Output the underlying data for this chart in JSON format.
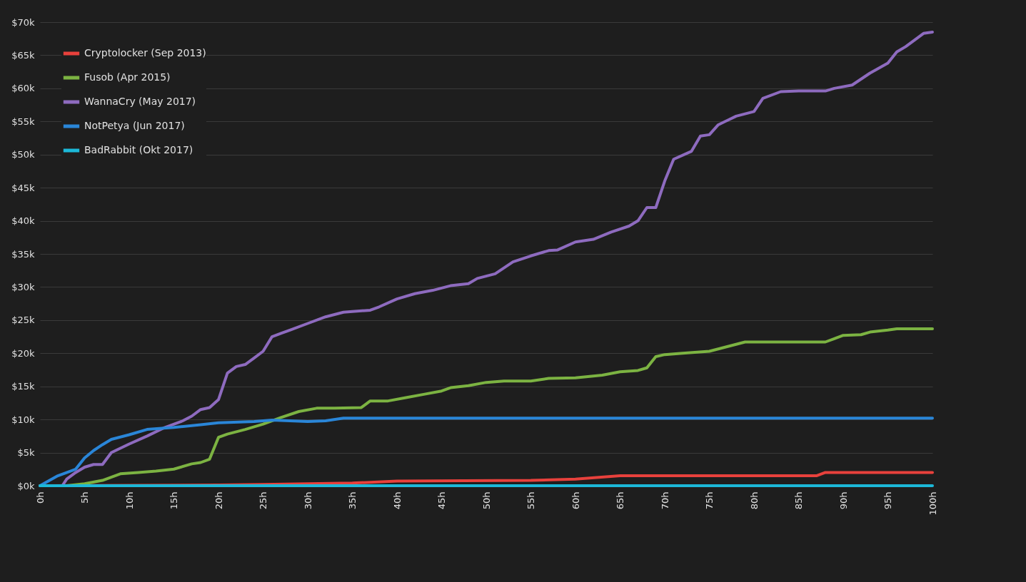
{
  "chart_data": {
    "type": "line",
    "legend": "top left",
    "grid": "y",
    "marker": "none",
    "line_style": "solid",
    "xlim": [
      0,
      100
    ],
    "ylim": [
      0,
      70
    ],
    "xticks": [
      {
        "value": 0,
        "label": "0h"
      },
      {
        "value": 5,
        "label": "5h"
      },
      {
        "value": 10,
        "label": "10h"
      },
      {
        "value": 15,
        "label": "15h"
      },
      {
        "value": 20,
        "label": "20h"
      },
      {
        "value": 25,
        "label": "25h"
      },
      {
        "value": 30,
        "label": "30h"
      },
      {
        "value": 35,
        "label": "35h"
      },
      {
        "value": 40,
        "label": "40h"
      },
      {
        "value": 45,
        "label": "45h"
      },
      {
        "value": 50,
        "label": "50h"
      },
      {
        "value": 55,
        "label": "55h"
      },
      {
        "value": 60,
        "label": "60h"
      },
      {
        "value": 65,
        "label": "65h"
      },
      {
        "value": 70,
        "label": "70h"
      },
      {
        "value": 75,
        "label": "75h"
      },
      {
        "value": 80,
        "label": "80h"
      },
      {
        "value": 85,
        "label": "85h"
      },
      {
        "value": 90,
        "label": "90h"
      },
      {
        "value": 95,
        "label": "95h"
      },
      {
        "value": 100,
        "label": "100h"
      }
    ],
    "yticks": [
      {
        "value": 0,
        "label": "$0k"
      },
      {
        "value": 5,
        "label": "$5k"
      },
      {
        "value": 10,
        "label": "$10k"
      },
      {
        "value": 15,
        "label": "$15k"
      },
      {
        "value": 20,
        "label": "$20k"
      },
      {
        "value": 25,
        "label": "$25k"
      },
      {
        "value": 30,
        "label": "$30k"
      },
      {
        "value": 35,
        "label": "$35k"
      },
      {
        "value": 40,
        "label": "$40k"
      },
      {
        "value": 45,
        "label": "$45k"
      },
      {
        "value": 50,
        "label": "$50k"
      },
      {
        "value": 55,
        "label": "$55k"
      },
      {
        "value": 60,
        "label": "$60k"
      },
      {
        "value": 65,
        "label": "$65k"
      },
      {
        "value": 70,
        "label": "$70k"
      }
    ],
    "series": [
      {
        "name": "Cryptolocker (Sep 2013)",
        "color": "#e8413c",
        "x": [
          0,
          20,
          25,
          35,
          40,
          55,
          60,
          65,
          87,
          88,
          100
        ],
        "values": [
          0,
          0.1,
          0.2,
          0.4,
          0.7,
          0.8,
          1,
          1.5,
          1.5,
          2,
          2
        ]
      },
      {
        "name": "Fusob (Apr 2015)",
        "color": "#7cb342",
        "x": [
          0,
          3,
          5,
          7,
          9,
          11,
          13,
          15,
          17,
          18,
          19,
          20,
          21,
          23,
          25,
          27,
          29,
          31,
          33,
          36,
          37,
          39,
          41,
          43,
          45,
          46,
          48,
          50,
          52,
          55,
          57,
          60,
          63,
          65,
          67,
          68,
          69,
          70,
          72,
          75,
          77,
          79,
          82,
          85,
          88,
          89,
          90,
          92,
          93,
          95,
          96,
          100
        ],
        "values": [
          0,
          0,
          0.3,
          0.8,
          1.8,
          2,
          2.2,
          2.5,
          3.3,
          3.5,
          4,
          7.3,
          7.8,
          8.5,
          9.3,
          10.3,
          11.2,
          11.7,
          11.7,
          11.8,
          12.8,
          12.8,
          13.3,
          13.8,
          14.3,
          14.8,
          15.1,
          15.6,
          15.8,
          15.8,
          16.2,
          16.3,
          16.7,
          17.2,
          17.4,
          17.8,
          19.5,
          19.8,
          20,
          20.3,
          21,
          21.7,
          21.7,
          21.7,
          21.7,
          22.2,
          22.7,
          22.8,
          23.2,
          23.5,
          23.7,
          23.7
        ]
      },
      {
        "name": "WannaCry (May 2017)",
        "color": "#8e6bbf",
        "x": [
          2.5,
          3,
          4,
          5,
          6,
          7,
          8,
          10,
          12,
          14,
          16,
          17,
          18,
          19,
          20,
          21,
          22,
          23,
          24,
          25,
          26,
          27,
          28,
          30,
          32,
          34,
          35,
          37,
          38,
          40,
          42,
          44,
          46,
          48,
          49,
          51,
          53,
          55,
          57,
          58,
          60,
          62,
          64,
          66,
          67,
          68,
          69,
          70,
          71,
          73,
          74,
          75,
          76,
          78,
          80,
          81,
          83,
          85,
          88,
          89,
          91,
          93,
          95,
          96,
          97,
          98,
          99,
          100
        ],
        "values": [
          0,
          1,
          2,
          2.8,
          3.2,
          3.2,
          5,
          6.3,
          7.5,
          8.8,
          9.8,
          10.5,
          11.5,
          11.8,
          13,
          17,
          18,
          18.3,
          19.3,
          20.3,
          22.5,
          23,
          23.5,
          24.5,
          25.5,
          26.2,
          26.3,
          26.5,
          27,
          28.2,
          29,
          29.5,
          30.2,
          30.5,
          31.3,
          32,
          33.8,
          34.7,
          35.5,
          35.6,
          36.8,
          37.2,
          38.3,
          39.2,
          40,
          42,
          42,
          46,
          49.3,
          50.5,
          52.8,
          53,
          54.5,
          55.8,
          56.5,
          58.5,
          59.5,
          59.6,
          59.6,
          60,
          60.5,
          62.3,
          63.8,
          65.5,
          66.3,
          67.3,
          68.3,
          68.5
        ]
      },
      {
        "name": "NotPetya (Jun 2017)",
        "color": "#2a86d8",
        "x": [
          0,
          2,
          4,
          5,
          6,
          7,
          8,
          10,
          12,
          15,
          18,
          20,
          24,
          26,
          30,
          32,
          34,
          40,
          100
        ],
        "values": [
          0,
          1.5,
          2.5,
          4.2,
          5.3,
          6.2,
          7,
          7.7,
          8.5,
          8.8,
          9.2,
          9.5,
          9.7,
          9.9,
          9.7,
          9.8,
          10.2,
          10.2,
          10.2
        ]
      },
      {
        "name": "BadRabbit (Okt 2017)",
        "color": "#1cb8d8",
        "x": [
          0,
          100
        ],
        "values": [
          0,
          0
        ]
      }
    ]
  }
}
